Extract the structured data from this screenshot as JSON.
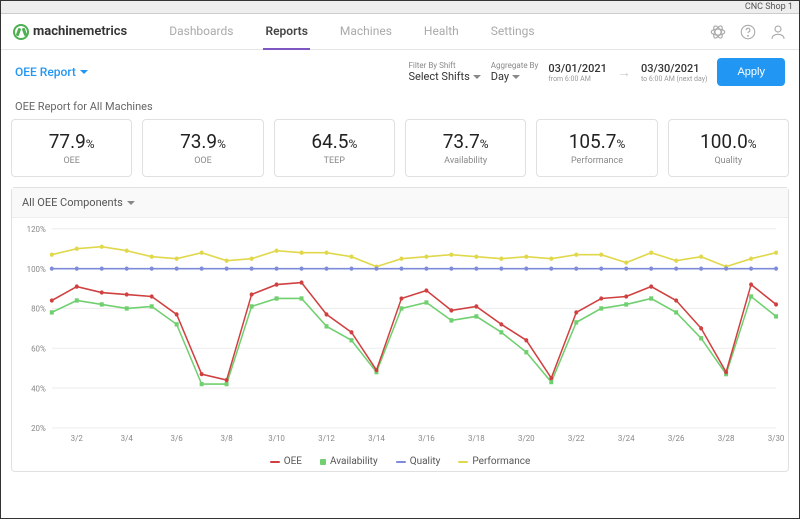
{
  "shop_label": "CNC Shop 1",
  "brand": {
    "part1": "machine",
    "part2": "metrics"
  },
  "nav": {
    "tabs": [
      "Dashboards",
      "Reports",
      "Machines",
      "Health",
      "Settings"
    ],
    "active_index": 1
  },
  "report_dropdown": "OEE Report",
  "filter_by_shift": {
    "label": "Filter By Shift",
    "value": "Select Shifts"
  },
  "aggregate_by": {
    "label": "Aggregate By",
    "value": "Day"
  },
  "date_from": {
    "date": "03/01/2021",
    "sub": "from 6:00 AM"
  },
  "date_to": {
    "date": "03/30/2021",
    "sub": "to 6:00 AM (next day)"
  },
  "apply_label": "Apply",
  "section_title": "OEE Report for All Machines",
  "metrics": [
    {
      "value": "77.9",
      "label": "OEE"
    },
    {
      "value": "73.9",
      "label": "OOE"
    },
    {
      "value": "64.5",
      "label": "TEEP"
    },
    {
      "value": "73.7",
      "label": "Availability"
    },
    {
      "value": "105.7",
      "label": "Performance"
    },
    {
      "value": "100.0",
      "label": "Quality"
    }
  ],
  "chart_dropdown": "All OEE Components",
  "chart": {
    "ylim": [
      20,
      120
    ],
    "ytick_step": 20,
    "ytick_suffix": "%",
    "x_labels": [
      "3/2",
      "3/4",
      "3/6",
      "3/8",
      "3/10",
      "3/12",
      "3/14",
      "3/16",
      "3/18",
      "3/20",
      "3/22",
      "3/24",
      "3/26",
      "3/28",
      "3/30"
    ],
    "x_step_dates": [
      "3/1",
      "3/2",
      "3/3",
      "3/4",
      "3/5",
      "3/6",
      "3/7",
      "3/8",
      "3/9",
      "3/10",
      "3/11",
      "3/12",
      "3/13",
      "3/14",
      "3/15",
      "3/16",
      "3/17",
      "3/18",
      "3/19",
      "3/20",
      "3/21",
      "3/22",
      "3/23",
      "3/24",
      "3/25",
      "3/26",
      "3/27",
      "3/28",
      "3/29",
      "3/30"
    ],
    "series": [
      {
        "name": "Performance",
        "color": "#e0d84a",
        "marker": "circle",
        "values": [
          107,
          110,
          111,
          109,
          106,
          105,
          108,
          104,
          105,
          109,
          108,
          108,
          106,
          101,
          105,
          106,
          107,
          106,
          105,
          106,
          105,
          107,
          107,
          103,
          108,
          104,
          106,
          101,
          105,
          108
        ]
      },
      {
        "name": "Quality",
        "color": "#7e8bd8",
        "marker": "circle",
        "values": [
          100,
          100,
          100,
          100,
          100,
          100,
          100,
          100,
          100,
          100,
          100,
          100,
          100,
          100,
          100,
          100,
          100,
          100,
          100,
          100,
          100,
          100,
          100,
          100,
          100,
          100,
          100,
          100,
          100,
          100
        ]
      },
      {
        "name": "Availability",
        "color": "#70d070",
        "marker": "square",
        "values": [
          78,
          84,
          82,
          80,
          81,
          72,
          42,
          42,
          81,
          85,
          85,
          71,
          64,
          48,
          80,
          83,
          74,
          76,
          68,
          58,
          43,
          73,
          80,
          82,
          85,
          78,
          65,
          47,
          86,
          76
        ]
      },
      {
        "name": "OEE",
        "color": "#d04040",
        "marker": "circle",
        "values": [
          84,
          91,
          88,
          87,
          86,
          77,
          47,
          44,
          87,
          92,
          93,
          77,
          68,
          49,
          85,
          89,
          79,
          81,
          72,
          64,
          45,
          78,
          85,
          86,
          91,
          84,
          70,
          48,
          92,
          82
        ]
      }
    ],
    "legend": [
      {
        "name": "OEE",
        "color": "#d04040",
        "shape": "line"
      },
      {
        "name": "Availability",
        "color": "#70d070",
        "shape": "square"
      },
      {
        "name": "Quality",
        "color": "#7e8bd8",
        "shape": "line"
      },
      {
        "name": "Performance",
        "color": "#e0d84a",
        "shape": "line"
      }
    ],
    "font_size_axis": 8,
    "grid_color": "#f0f0f0",
    "marker_size": 2
  }
}
